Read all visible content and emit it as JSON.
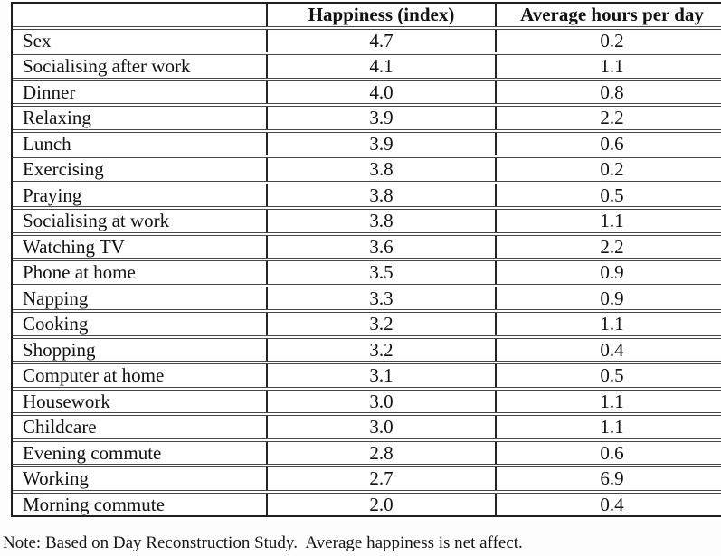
{
  "table": {
    "columns": [
      "",
      "Happiness (index)",
      "Average hours per day"
    ],
    "rows": [
      {
        "activity": "Sex",
        "happiness": "4.7",
        "hours": "0.2"
      },
      {
        "activity": "Socialising after work",
        "happiness": "4.1",
        "hours": "1.1"
      },
      {
        "activity": "Dinner",
        "happiness": "4.0",
        "hours": "0.8"
      },
      {
        "activity": "Relaxing",
        "happiness": "3.9",
        "hours": "2.2"
      },
      {
        "activity": "Lunch",
        "happiness": "3.9",
        "hours": "0.6"
      },
      {
        "activity": "Exercising",
        "happiness": "3.8",
        "hours": "0.2"
      },
      {
        "activity": "Praying",
        "happiness": "3.8",
        "hours": "0.5"
      },
      {
        "activity": "Socialising at work",
        "happiness": "3.8",
        "hours": "1.1"
      },
      {
        "activity": "Watching TV",
        "happiness": "3.6",
        "hours": "2.2"
      },
      {
        "activity": "Phone at home",
        "happiness": "3.5",
        "hours": "0.9"
      },
      {
        "activity": "Napping",
        "happiness": "3.3",
        "hours": "0.9"
      },
      {
        "activity": "Cooking",
        "happiness": "3.2",
        "hours": "1.1"
      },
      {
        "activity": "Shopping",
        "happiness": "3.2",
        "hours": "0.4"
      },
      {
        "activity": "Computer at home",
        "happiness": "3.1",
        "hours": "0.5"
      },
      {
        "activity": "Housework",
        "happiness": "3.0",
        "hours": "1.1"
      },
      {
        "activity": "Childcare",
        "happiness": "3.0",
        "hours": "1.1"
      },
      {
        "activity": "Evening commute",
        "happiness": "2.8",
        "hours": "0.6"
      },
      {
        "activity": "Working",
        "happiness": "2.7",
        "hours": "6.9"
      },
      {
        "activity": "Morning commute",
        "happiness": "2.0",
        "hours": "0.4"
      }
    ]
  },
  "note": "Note: Based on Day Reconstruction Study.  Average happiness is net affect."
}
